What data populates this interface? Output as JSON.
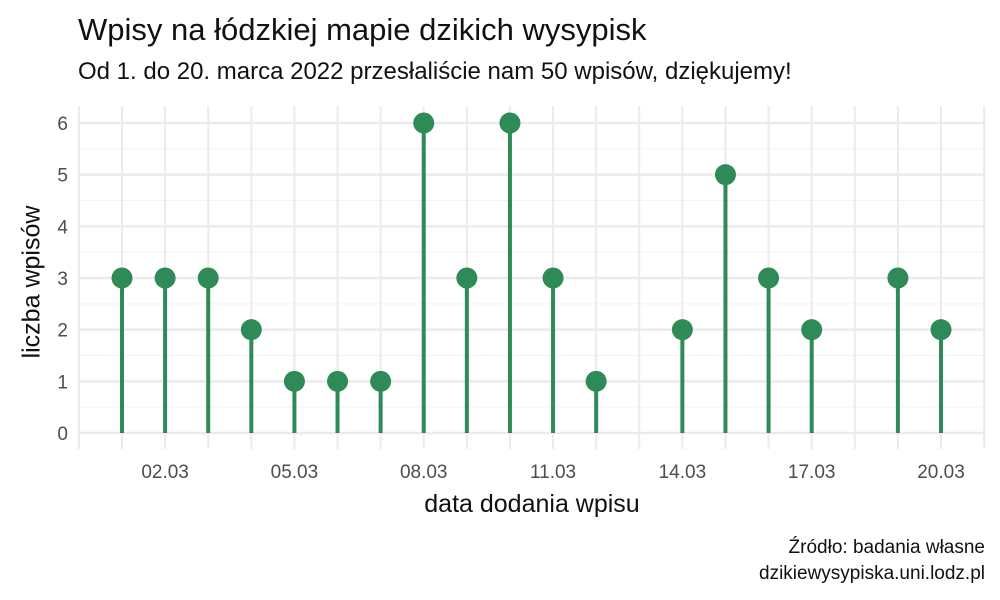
{
  "chart_data": {
    "type": "lollipop",
    "title": "Wpisy na łódzkiej mapie dzikich wysypisk",
    "subtitle": "Od 1. do 20. marca 2022 przesłaliście nam 50 wpisów, dziękujemy!",
    "xlabel": "data dodania wpisu",
    "ylabel": "liczba wpisów",
    "caption": [
      "Źródło: badania własne",
      "dzikiewysypiska.uni.lodz.pl"
    ],
    "categories": [
      "01.03",
      "02.03",
      "03.03",
      "04.03",
      "05.03",
      "06.03",
      "07.03",
      "08.03",
      "09.03",
      "10.03",
      "11.03",
      "12.03",
      "13.03",
      "14.03",
      "15.03",
      "16.03",
      "17.03",
      "18.03",
      "19.03",
      "20.03"
    ],
    "values": [
      3,
      3,
      3,
      2,
      1,
      1,
      1,
      6,
      3,
      6,
      3,
      1,
      0,
      2,
      5,
      3,
      2,
      0,
      3,
      2
    ],
    "x_tick_labels": [
      "02.03",
      "05.03",
      "08.03",
      "11.03",
      "14.03",
      "17.03",
      "20.03"
    ],
    "y_ticks": [
      0,
      1,
      2,
      3,
      4,
      5,
      6
    ],
    "ylim": [
      0,
      6
    ],
    "grid": true,
    "color": "#2e8b57"
  }
}
